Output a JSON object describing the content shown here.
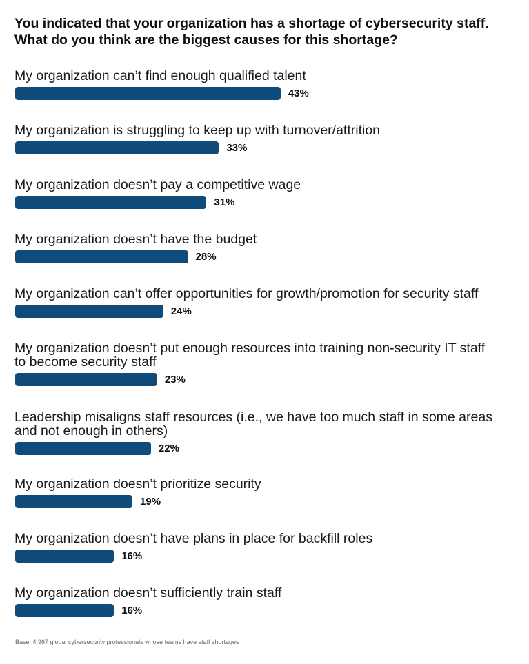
{
  "title_lines": [
    "You indicated that your organization has a shortage of cybersecurity staff.",
    "What do you think are the biggest causes for this shortage?"
  ],
  "footnote": "Base: 4,967 global cybersecurity professionals whose teams have staff shortages",
  "colors": {
    "bar": "#0f4c7c"
  },
  "chart_data": {
    "type": "bar",
    "orientation": "horizontal",
    "title": "You indicated that your organization has a shortage of cybersecurity staff. What do you think are the biggest causes for this shortage?",
    "unit": "%",
    "categories": [
      [
        "My organization can’t find enough qualified talent"
      ],
      [
        "My organization is struggling to keep up with turnover/attrition"
      ],
      [
        "My organization doesn’t pay a competitive wage"
      ],
      [
        "My organization doesn’t have the budget"
      ],
      [
        "My organization can’t offer opportunities for growth/promotion for security staff"
      ],
      [
        "My organization doesn’t put enough resources into training non-security IT staff",
        "to become security staff"
      ],
      [
        "Leadership misaligns staff resources (i.e., we have too much staff in some areas",
        "and not enough in others)"
      ],
      [
        "My organization doesn’t prioritize security"
      ],
      [
        "My organization doesn’t have plans in place for backfill roles"
      ],
      [
        "My organization doesn’t sufficiently train staff"
      ]
    ],
    "values": [
      43,
      33,
      31,
      28,
      24,
      23,
      22,
      19,
      16,
      16
    ],
    "value_labels": [
      "43%",
      "33%",
      "31%",
      "28%",
      "24%",
      "23%",
      "22%",
      "19%",
      "16%",
      "16%"
    ],
    "xlim": [
      0,
      100
    ],
    "grid": false,
    "legend": "none"
  }
}
